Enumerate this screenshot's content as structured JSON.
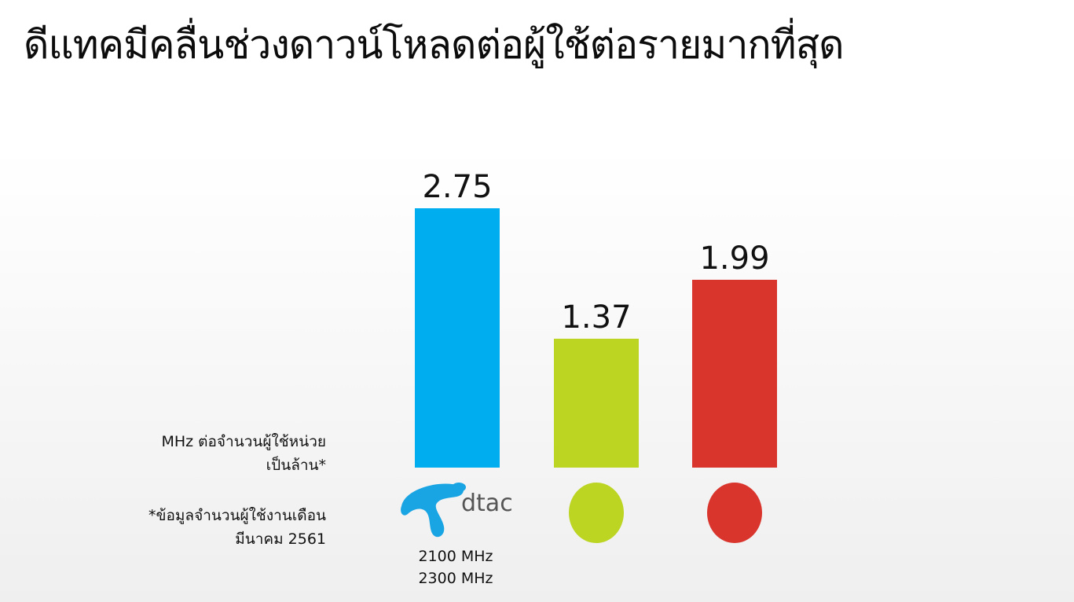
{
  "title": "ดีแทคมีคลื่นช่วงดาวน์โหลดต่อผู้ใช้ต่อรายมากที่สุด",
  "y_label_lines": [
    "MHz ต่อจำนวนผู้ใช้หน่วย",
    "เป็นล้าน*"
  ],
  "footnote_lines": [
    "*ข้อมูลจำนวนผู้ใช้งานเดือน",
    "มีนาคม 2561"
  ],
  "dtac": {
    "logo_text": "dtac",
    "frequencies": [
      "2100 MHz",
      "2300 MHz"
    ]
  },
  "chart_data": {
    "type": "bar",
    "title": "ดีแทคมีคลื่นช่วงดาวน์โหลดต่อผู้ใช้ต่อรายมากที่สุด",
    "ylabel": "MHz ต่อจำนวนผู้ใช้หน่วย เป็นล้าน*",
    "categories": [
      "dtac",
      "",
      ""
    ],
    "values": [
      2.75,
      1.37,
      1.99
    ],
    "value_labels": [
      "2.75",
      "1.37",
      "1.99"
    ],
    "colors": [
      "#00adef",
      "#bcd422",
      "#d9352d"
    ],
    "ylim": [
      0,
      2.75
    ],
    "grid": false,
    "legend": "none"
  }
}
